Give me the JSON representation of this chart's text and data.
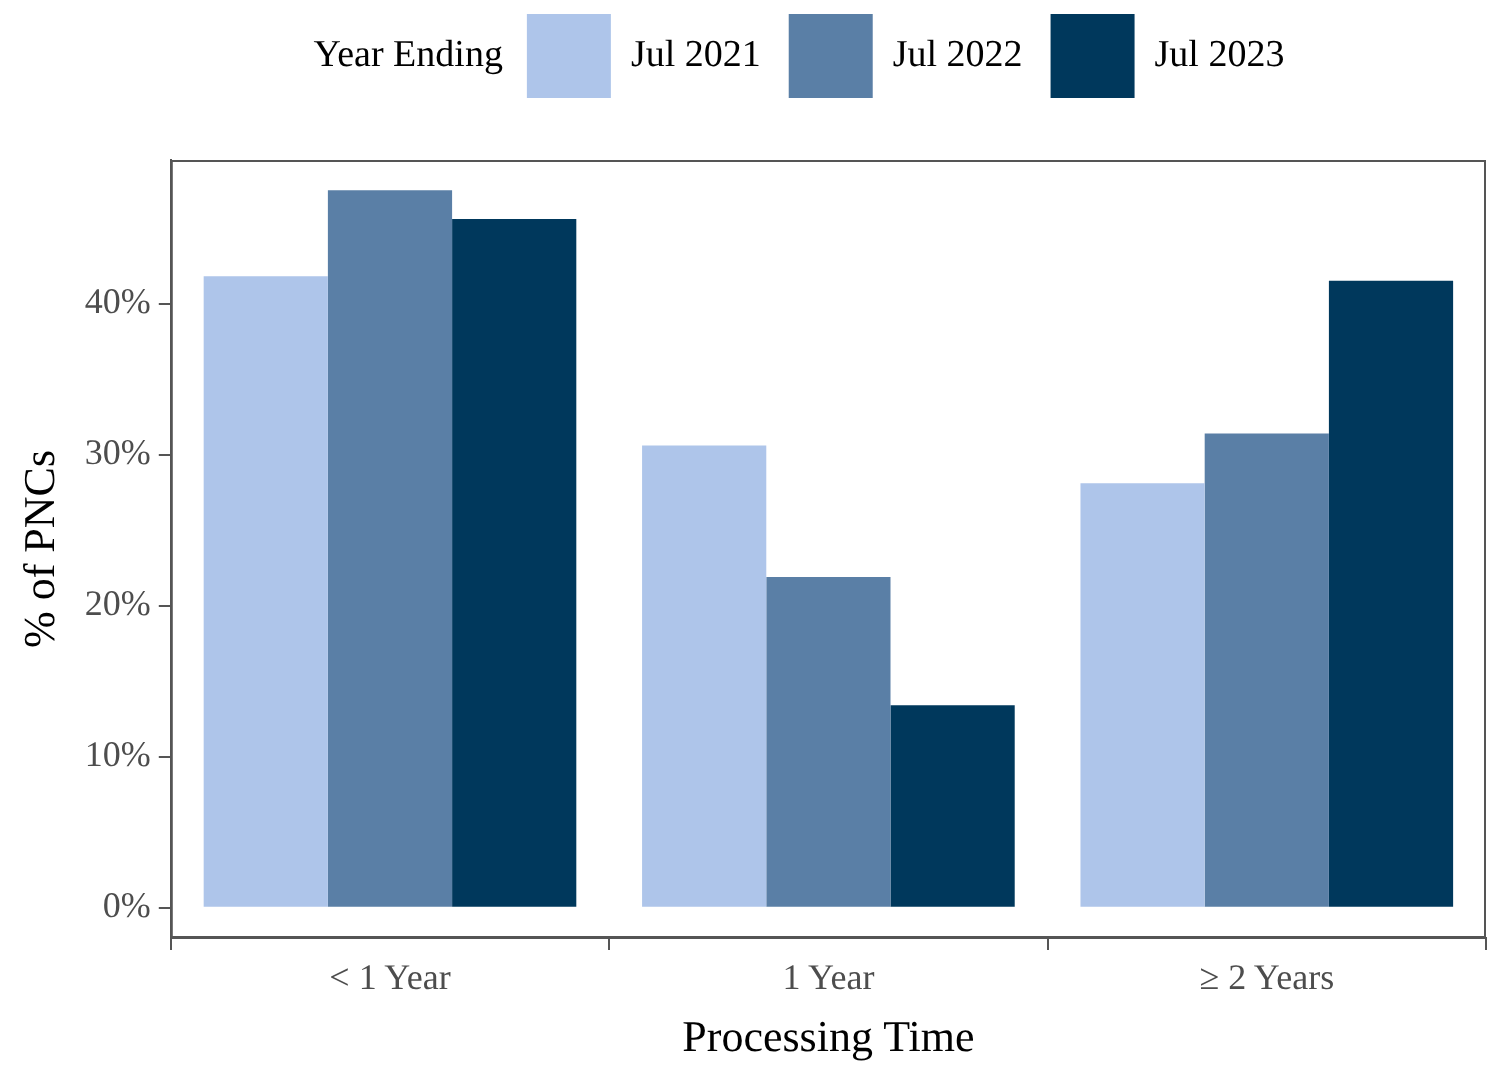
{
  "chart_data": {
    "type": "bar",
    "xlabel": "Processing Time",
    "ylabel": "% of PNCs",
    "legend_title": "Year Ending",
    "legend": "top",
    "categories": [
      "< 1 Year",
      "1 Year",
      "≥ 2 Years"
    ],
    "series": [
      {
        "name": "Jul 2021",
        "color": "#aec5ea",
        "values": [
          41.8,
          30.6,
          28.1
        ]
      },
      {
        "name": "Jul 2022",
        "color": "#5a7fa6",
        "values": [
          47.5,
          21.9,
          31.4
        ]
      },
      {
        "name": "Jul 2023",
        "color": "#00385c",
        "values": [
          45.6,
          13.4,
          41.5
        ]
      }
    ],
    "ylim": [
      -2,
      49.5
    ],
    "yticks": [
      {
        "value": 0,
        "label": "0%"
      },
      {
        "value": 10,
        "label": "10%"
      },
      {
        "value": 20,
        "label": "20%"
      },
      {
        "value": 30,
        "label": "30%"
      },
      {
        "value": 40,
        "label": "40%"
      }
    ],
    "grid": false
  }
}
